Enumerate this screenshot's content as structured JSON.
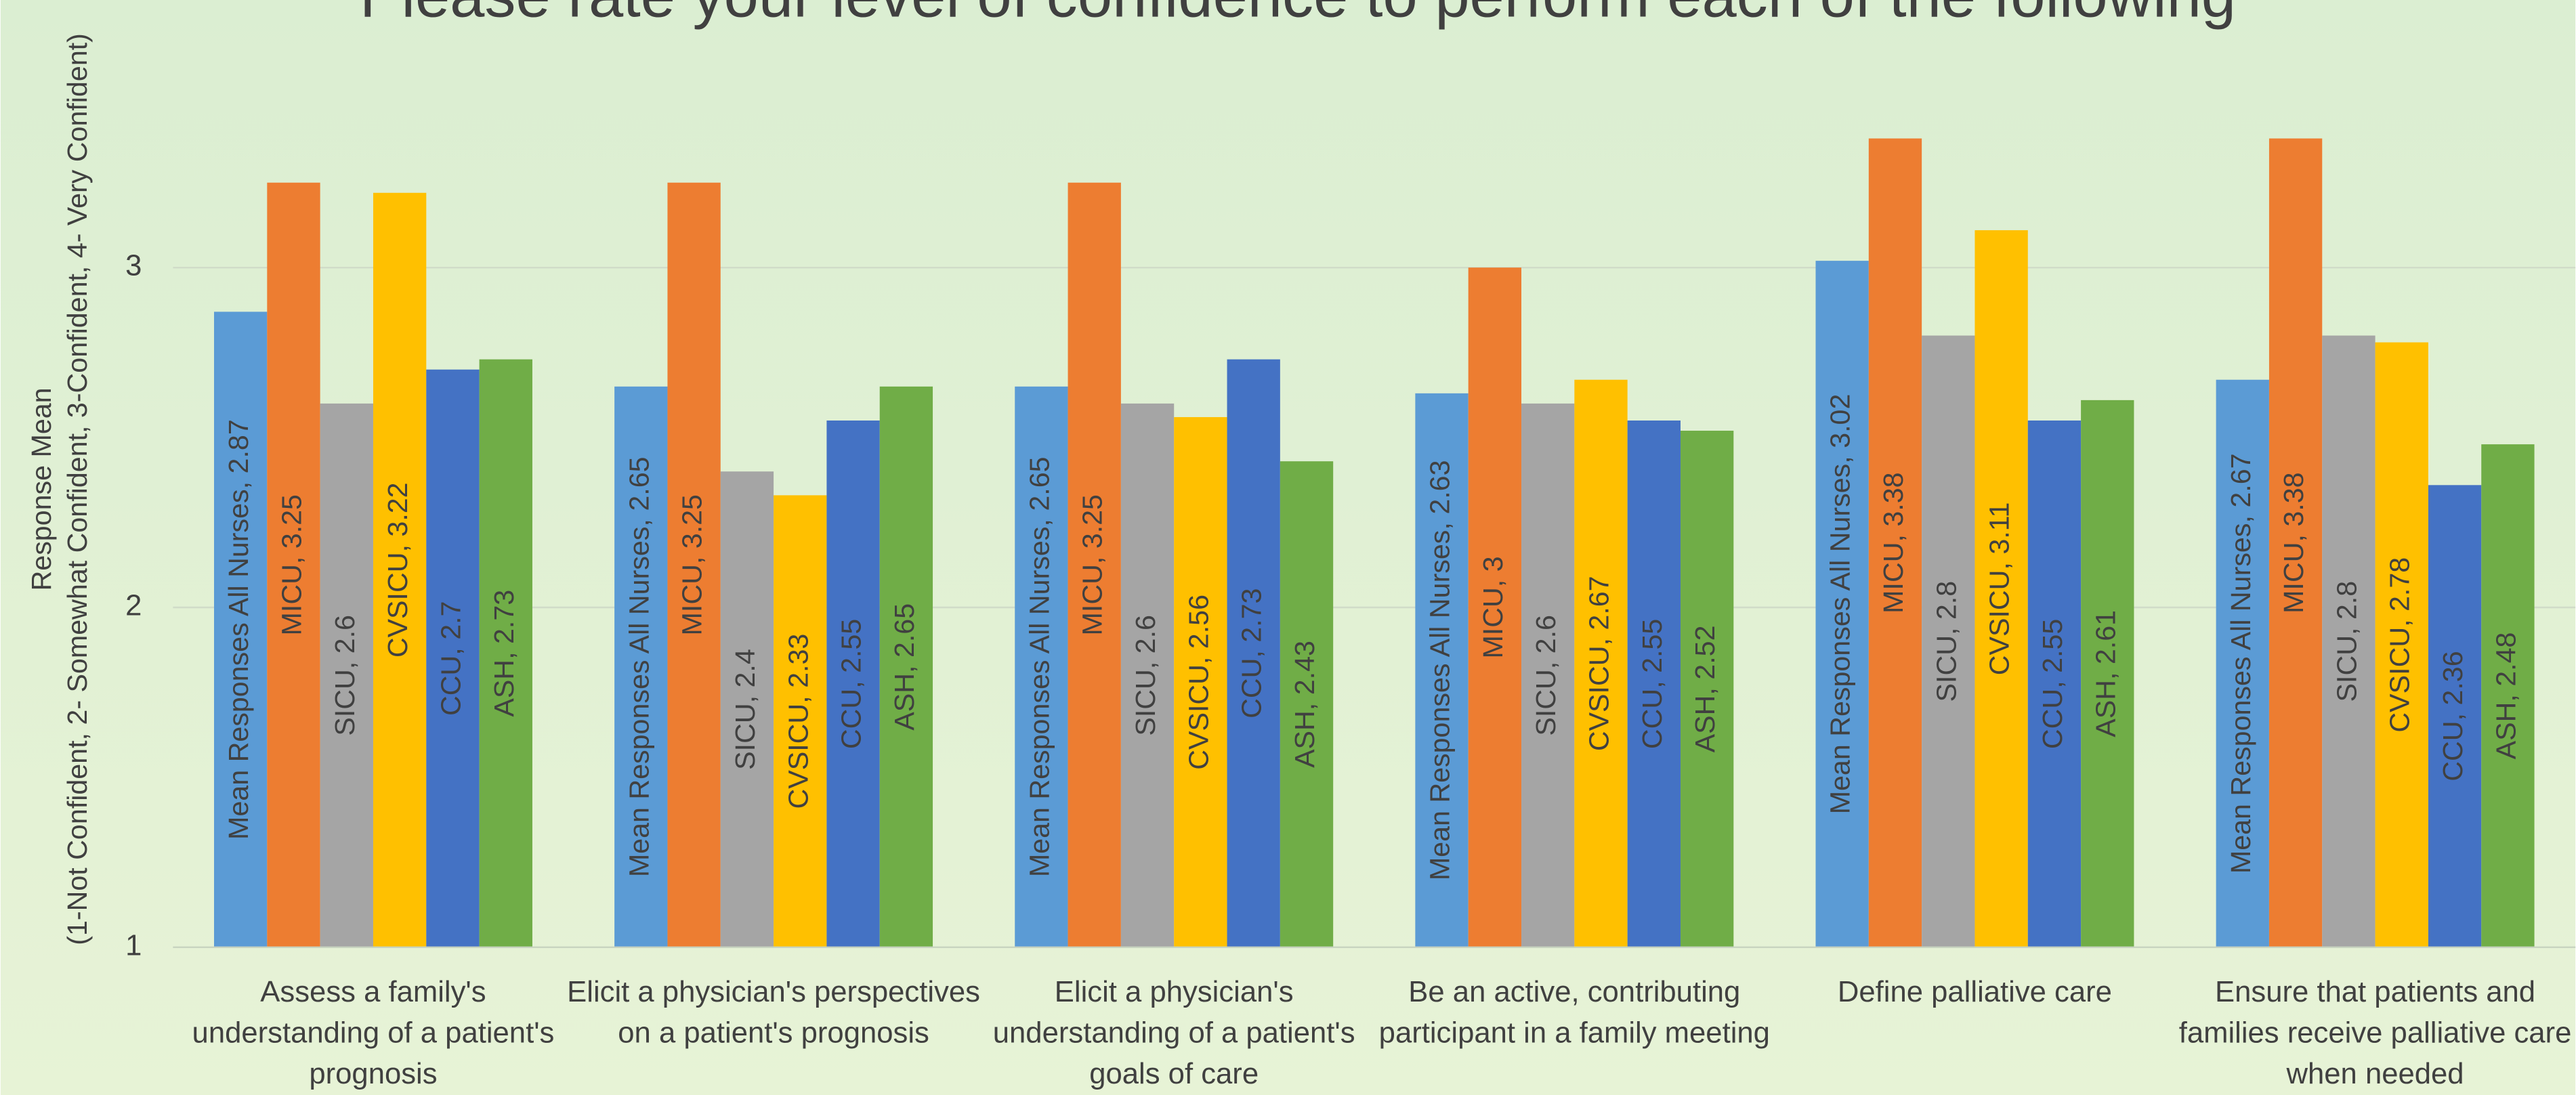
{
  "chart_data": {
    "type": "bar",
    "title": "Please rate your level of confidence to perform each of the following",
    "y_label": [
      "Response Mean",
      "(1-Not Confident, 2- Somewhat Confident, 3-Confident, 4- Very Confident)"
    ],
    "categories": [
      "Assess a family's understanding of a patient's prognosis",
      "Elicit a physician's perspectives on a patient's prognosis",
      "Elicit a physician's understanding of a patient's goals of care",
      "Be an active, contributing participant in a family meeting",
      "Define palliative care",
      "Ensure that patients and families receive palliative care when needed"
    ],
    "series": [
      {
        "name": "Mean Responses All Nurses",
        "color": "#5B9BD5",
        "values": [
          2.87,
          2.65,
          2.65,
          2.63,
          3.02,
          2.67
        ]
      },
      {
        "name": "MICU",
        "color": "#ED7D31",
        "values": [
          3.25,
          3.25,
          3.25,
          3,
          3.38,
          3.38
        ]
      },
      {
        "name": "SICU",
        "color": "#A5A5A5",
        "values": [
          2.6,
          2.4,
          2.6,
          2.6,
          2.8,
          2.8
        ]
      },
      {
        "name": "CVSICU",
        "color": "#FFC000",
        "values": [
          3.22,
          2.33,
          2.56,
          2.67,
          3.11,
          2.78
        ]
      },
      {
        "name": "CCU",
        "color": "#4472C4",
        "values": [
          2.7,
          2.55,
          2.73,
          2.55,
          2.55,
          2.36
        ]
      },
      {
        "name": "ASH",
        "color": "#70AD47",
        "values": [
          2.73,
          2.65,
          2.43,
          2.52,
          2.61,
          2.48
        ]
      }
    ],
    "ylim": [
      1,
      3.5
    ],
    "yticks": [
      1,
      2,
      3
    ],
    "grid": true
  }
}
